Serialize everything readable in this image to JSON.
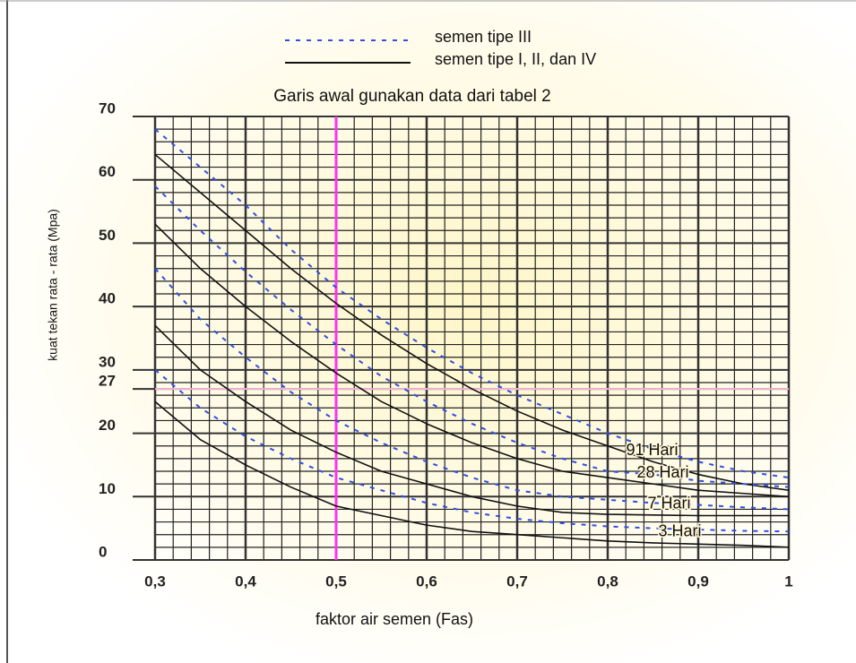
{
  "chart_data": {
    "type": "line",
    "title": "Garis awal gunakan data dari tabel 2",
    "x_label": "faktor air semen (Fas)",
    "y_label": "kuat tekan rata - rata (Mpa)",
    "legend": [
      {
        "name": "semen tipe III",
        "style": "dotted",
        "color": "#2f4fe0"
      },
      {
        "name": "semen tipe I, II, dan IV",
        "style": "solid",
        "color": "#111111"
      }
    ],
    "x": [
      0.3,
      0.35,
      0.4,
      0.45,
      0.5,
      0.55,
      0.6,
      0.65,
      0.7,
      0.75,
      0.8,
      0.85,
      0.9,
      0.95,
      1.0
    ],
    "series": [
      {
        "name": "91 Hari",
        "type_iii": [
          68,
          62,
          56,
          49,
          43,
          38,
          33.5,
          29.5,
          26,
          23,
          20,
          17.5,
          15.5,
          14,
          13
        ],
        "type_i": [
          64,
          58,
          52,
          46,
          40.5,
          35.5,
          31,
          27,
          23.5,
          20.5,
          18,
          15.5,
          13.5,
          12,
          11
        ]
      },
      {
        "name": "28 Hari",
        "type_iii": [
          59,
          52,
          45.5,
          39.5,
          34,
          29,
          25,
          21.5,
          18.5,
          16,
          14,
          13.5,
          12.5,
          12,
          11.5
        ],
        "type_i": [
          53,
          46,
          40,
          34.5,
          29.5,
          25,
          21.5,
          18.5,
          16,
          14,
          13,
          12,
          11,
          10.5,
          10
        ]
      },
      {
        "name": "7 Hari",
        "type_iii": [
          46,
          38,
          32,
          26.5,
          22,
          18.5,
          15.5,
          13,
          11,
          10,
          9.5,
          9,
          8.7,
          8.3,
          8
        ],
        "type_i": [
          37,
          30,
          25,
          20.5,
          17,
          14,
          12,
          10,
          8.5,
          7.5,
          7.2,
          7.1,
          7,
          7,
          7
        ]
      },
      {
        "name": "3 Hari",
        "type_iii": [
          30,
          24,
          19.5,
          16,
          13,
          11,
          9,
          7.5,
          6.5,
          5.8,
          5.3,
          5,
          4.8,
          4.6,
          4.5
        ],
        "type_i": [
          25,
          19,
          15,
          11.5,
          8.5,
          7,
          5.5,
          4.5,
          4,
          3.5,
          3,
          2.7,
          2.5,
          2.3,
          2
        ]
      }
    ],
    "xlim": [
      0.3,
      1.0
    ],
    "xticks": [
      {
        "value": 0.3,
        "label": "0,3"
      },
      {
        "value": 0.4,
        "label": "0,4"
      },
      {
        "value": 0.5,
        "label": "0,5"
      },
      {
        "value": 0.6,
        "label": "0,6"
      },
      {
        "value": 0.7,
        "label": "0,7"
      },
      {
        "value": 0.8,
        "label": "0,8"
      },
      {
        "value": 0.9,
        "label": "0,9"
      },
      1
    ],
    "ylim": [
      0,
      70
    ],
    "yticks": [
      0,
      10,
      20,
      27,
      30,
      40,
      50,
      60,
      70
    ],
    "grid": true,
    "marker_x": 0.5,
    "marker_x_color": "#ff33ee",
    "marker_y": 27,
    "marker_y_color": "#f4b8d8"
  }
}
